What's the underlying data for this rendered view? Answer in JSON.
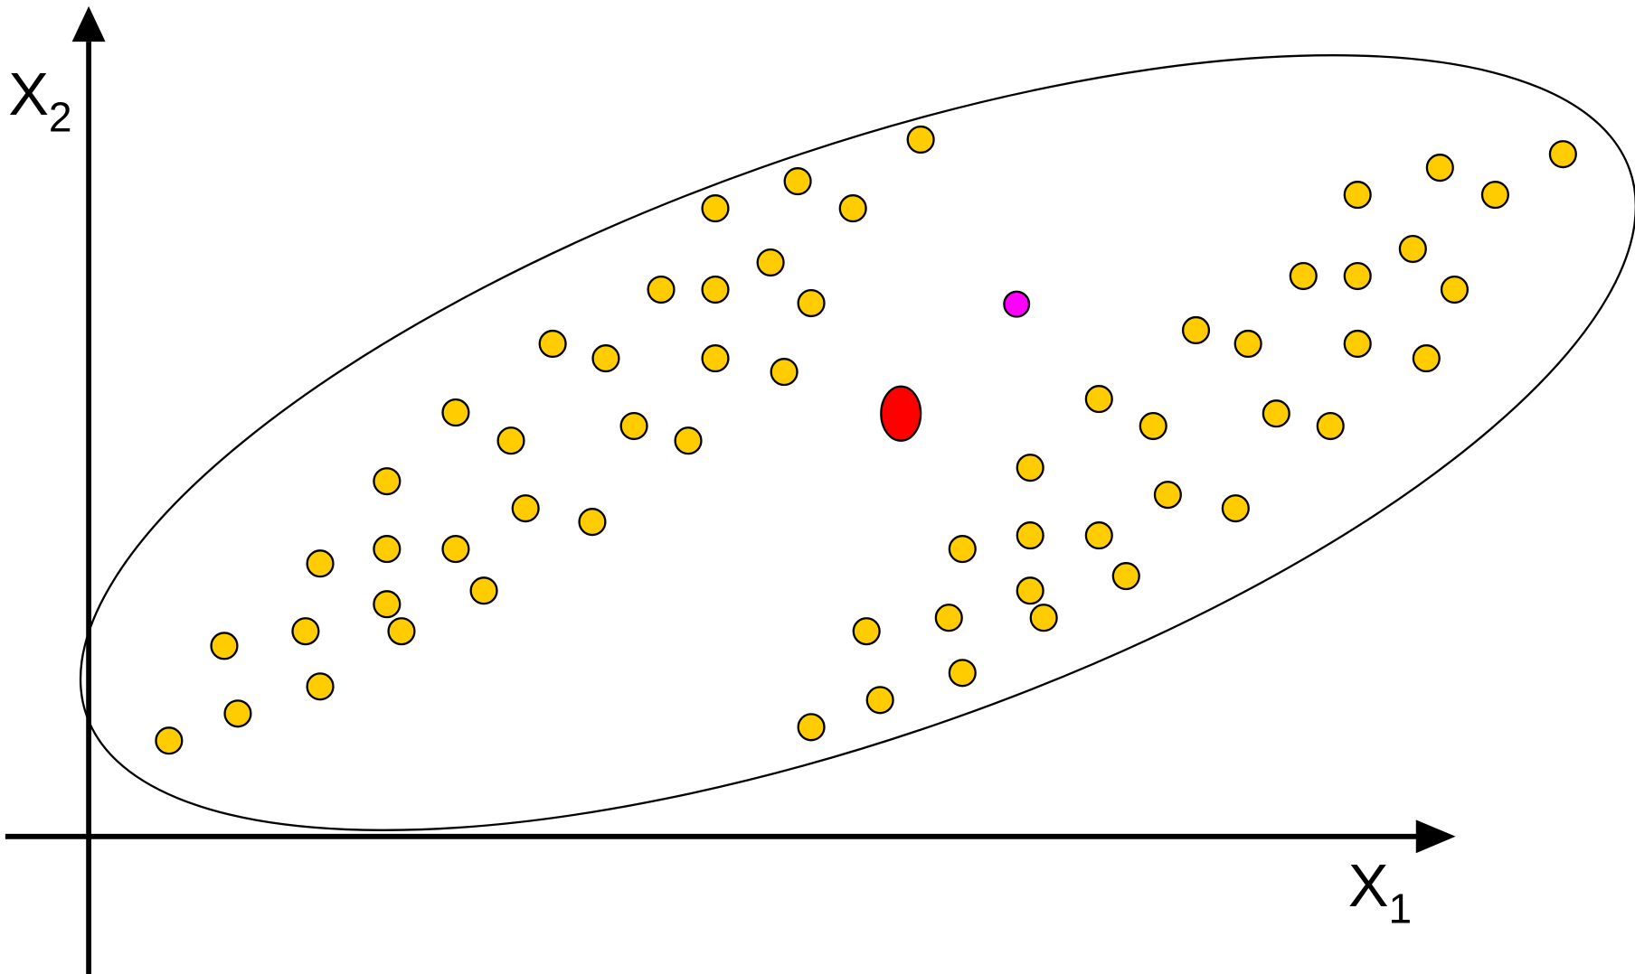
{
  "axis_labels": {
    "x": {
      "letter": "X",
      "subscript": "1"
    },
    "y": {
      "letter": "X",
      "subscript": "2"
    }
  }
}
